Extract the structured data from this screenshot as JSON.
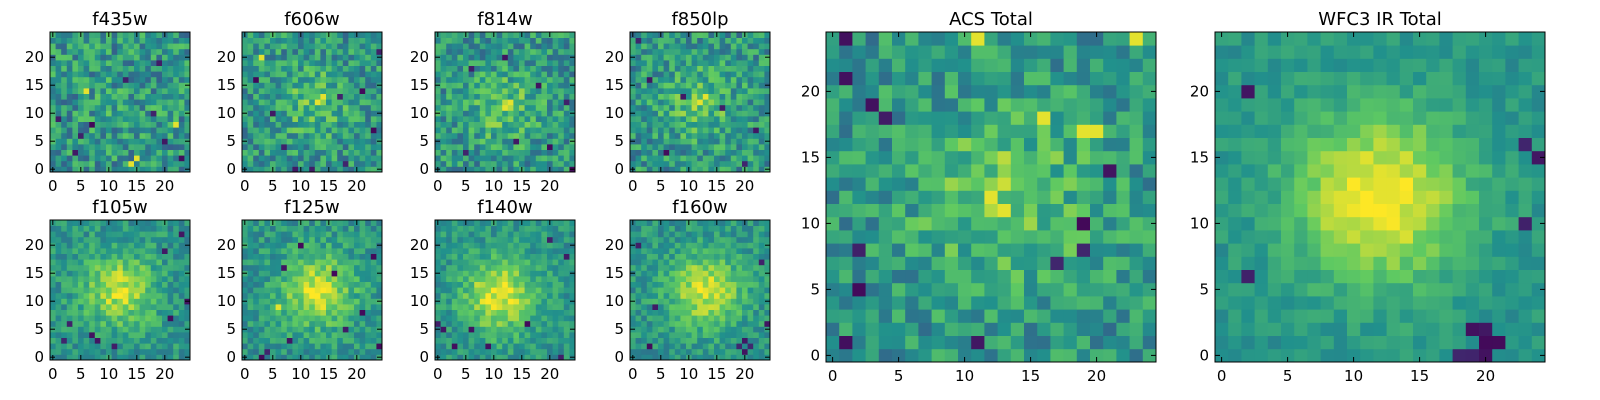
{
  "figure": {
    "background": "#ffffff"
  },
  "colormap": {
    "name": "viridis",
    "stops": [
      "#440154",
      "#3b528b",
      "#21918c",
      "#5ec962",
      "#fde725"
    ]
  },
  "chart_data": [
    {
      "type": "heatmap",
      "id": "f435w",
      "title": "f435w",
      "grid": [
        25,
        25
      ],
      "xlim": [
        -0.5,
        24.5
      ],
      "ylim": [
        -0.5,
        24.5
      ],
      "xticks": [
        0,
        5,
        10,
        15,
        20
      ],
      "yticks": [
        0,
        5,
        10,
        15,
        20
      ],
      "peak": [
        12,
        12
      ],
      "peak_strength": 0.05,
      "noise_level": 0.22,
      "seed": 11,
      "low_pixels": [
        [
          1,
          9
        ],
        [
          5,
          6
        ],
        [
          7,
          8
        ],
        [
          18,
          10
        ],
        [
          20,
          5
        ],
        [
          23,
          2
        ],
        [
          4,
          3
        ],
        [
          19,
          19
        ],
        [
          13,
          16
        ]
      ],
      "high_pixels": [
        [
          14,
          1
        ],
        [
          15,
          2
        ],
        [
          22,
          8
        ],
        [
          6,
          14
        ]
      ]
    },
    {
      "type": "heatmap",
      "id": "f606w",
      "title": "f606w",
      "grid": [
        25,
        25
      ],
      "xlim": [
        -0.5,
        24.5
      ],
      "ylim": [
        -0.5,
        24.5
      ],
      "xticks": [
        0,
        5,
        10,
        15,
        20
      ],
      "yticks": [
        0,
        5,
        10,
        15,
        20
      ],
      "peak": [
        12,
        12
      ],
      "peak_strength": 0.2,
      "noise_level": 0.2,
      "seed": 23,
      "low_pixels": [
        [
          2,
          16
        ],
        [
          5,
          10
        ],
        [
          7,
          4
        ],
        [
          9,
          0
        ],
        [
          12,
          0
        ],
        [
          17,
          13
        ],
        [
          21,
          14
        ],
        [
          18,
          1
        ],
        [
          24,
          21
        ],
        [
          23,
          7
        ]
      ],
      "high_pixels": [
        [
          13,
          12
        ],
        [
          14,
          13
        ],
        [
          3,
          20
        ]
      ]
    },
    {
      "type": "heatmap",
      "id": "f814w",
      "title": "f814w",
      "grid": [
        25,
        25
      ],
      "xlim": [
        -0.5,
        24.5
      ],
      "ylim": [
        -0.5,
        24.5
      ],
      "xticks": [
        0,
        5,
        10,
        15,
        20
      ],
      "yticks": [
        0,
        5,
        10,
        15,
        20
      ],
      "peak": [
        12,
        11
      ],
      "peak_strength": 0.22,
      "noise_level": 0.2,
      "seed": 37,
      "low_pixels": [
        [
          12,
          20
        ],
        [
          14,
          5
        ],
        [
          5,
          3
        ],
        [
          23,
          12
        ],
        [
          20,
          4
        ],
        [
          18,
          15
        ],
        [
          6,
          18
        ],
        [
          24,
          0
        ]
      ],
      "high_pixels": [
        [
          12,
          11
        ],
        [
          13,
          12
        ]
      ]
    },
    {
      "type": "heatmap",
      "id": "f850lp",
      "title": "f850lp",
      "grid": [
        25,
        25
      ],
      "xlim": [
        -0.5,
        24.5
      ],
      "ylim": [
        -0.5,
        24.5
      ],
      "xticks": [
        0,
        5,
        10,
        15,
        20
      ],
      "yticks": [
        0,
        5,
        10,
        15,
        20
      ],
      "peak": [
        12,
        12
      ],
      "peak_strength": 0.22,
      "noise_level": 0.2,
      "seed": 41,
      "low_pixels": [
        [
          3,
          16
        ],
        [
          6,
          3
        ],
        [
          9,
          13
        ],
        [
          16,
          11
        ],
        [
          22,
          7
        ],
        [
          20,
          1
        ],
        [
          1,
          23
        ]
      ],
      "high_pixels": [
        [
          12,
          12
        ],
        [
          13,
          13
        ]
      ]
    },
    {
      "type": "heatmap",
      "id": "f105w",
      "title": "f105w",
      "grid": [
        25,
        25
      ],
      "xlim": [
        -0.5,
        24.5
      ],
      "ylim": [
        -0.5,
        24.5
      ],
      "xticks": [
        0,
        5,
        10,
        15,
        20
      ],
      "yticks": [
        0,
        5,
        10,
        15,
        20
      ],
      "peak": [
        12,
        12
      ],
      "peak_strength": 0.42,
      "noise_level": 0.14,
      "seed": 53,
      "low_pixels": [
        [
          3,
          6
        ],
        [
          2,
          3
        ],
        [
          7,
          4
        ],
        [
          8,
          3
        ],
        [
          11,
          2
        ],
        [
          20,
          19
        ],
        [
          23,
          22
        ],
        [
          21,
          7
        ],
        [
          24,
          10
        ]
      ],
      "high_pixels": [
        [
          12,
          12
        ],
        [
          13,
          11
        ]
      ]
    },
    {
      "type": "heatmap",
      "id": "f125w",
      "title": "f125w",
      "grid": [
        25,
        25
      ],
      "xlim": [
        -0.5,
        24.5
      ],
      "ylim": [
        -0.5,
        24.5
      ],
      "xticks": [
        0,
        5,
        10,
        15,
        20
      ],
      "yticks": [
        0,
        5,
        10,
        15,
        20
      ],
      "peak": [
        13,
        12
      ],
      "peak_strength": 0.45,
      "noise_level": 0.14,
      "seed": 67,
      "low_pixels": [
        [
          3,
          0
        ],
        [
          4,
          1
        ],
        [
          8,
          3
        ],
        [
          18,
          5
        ],
        [
          21,
          8
        ],
        [
          24,
          2
        ],
        [
          23,
          18
        ],
        [
          7,
          16
        ],
        [
          16,
          15
        ],
        [
          10,
          20
        ]
      ],
      "high_pixels": [
        [
          13,
          12
        ],
        [
          14,
          13
        ],
        [
          6,
          9
        ]
      ]
    },
    {
      "type": "heatmap",
      "id": "f140w",
      "title": "f140w",
      "grid": [
        25,
        25
      ],
      "xlim": [
        -0.5,
        24.5
      ],
      "ylim": [
        -0.5,
        24.5
      ],
      "xticks": [
        0,
        5,
        10,
        15,
        20
      ],
      "yticks": [
        0,
        5,
        10,
        15,
        20
      ],
      "peak": [
        11,
        11
      ],
      "peak_strength": 0.48,
      "noise_level": 0.13,
      "seed": 79,
      "low_pixels": [
        [
          1,
          5
        ],
        [
          0,
          6
        ],
        [
          3,
          2
        ],
        [
          6,
          5
        ],
        [
          9,
          2
        ],
        [
          20,
          21
        ],
        [
          23,
          18
        ],
        [
          22,
          0
        ],
        [
          16,
          6
        ]
      ],
      "high_pixels": [
        [
          11,
          11
        ],
        [
          12,
          12
        ],
        [
          10,
          10
        ]
      ]
    },
    {
      "type": "heatmap",
      "id": "f160w",
      "title": "f160w",
      "grid": [
        25,
        25
      ],
      "xlim": [
        -0.5,
        24.5
      ],
      "ylim": [
        -0.5,
        24.5
      ],
      "xticks": [
        0,
        5,
        10,
        15,
        20
      ],
      "yticks": [
        0,
        5,
        10,
        15,
        20
      ],
      "peak": [
        13,
        12
      ],
      "peak_strength": 0.45,
      "noise_level": 0.13,
      "seed": 97,
      "low_pixels": [
        [
          19,
          2
        ],
        [
          20,
          1
        ],
        [
          21,
          2
        ],
        [
          20,
          3
        ],
        [
          3,
          2
        ],
        [
          23,
          17
        ],
        [
          24,
          6
        ],
        [
          1,
          20
        ],
        [
          4,
          9
        ]
      ],
      "high_pixels": [
        [
          13,
          12
        ],
        [
          14,
          13
        ]
      ]
    },
    {
      "type": "heatmap",
      "id": "acs_total",
      "title": "ACS Total",
      "grid": [
        25,
        25
      ],
      "xlim": [
        -0.5,
        24.5
      ],
      "ylim": [
        -0.5,
        24.5
      ],
      "xticks": [
        0,
        5,
        10,
        15,
        20
      ],
      "yticks": [
        0,
        5,
        10,
        15,
        20
      ],
      "peak": [
        13,
        12
      ],
      "peak_strength": 0.28,
      "noise_level": 0.18,
      "seed": 109,
      "low_pixels": [
        [
          1,
          21
        ],
        [
          2,
          5
        ],
        [
          2,
          8
        ],
        [
          1,
          24
        ],
        [
          3,
          19
        ],
        [
          11,
          1
        ],
        [
          19,
          8
        ],
        [
          19,
          10
        ],
        [
          4,
          18
        ],
        [
          21,
          14
        ],
        [
          17,
          7
        ],
        [
          1,
          1
        ]
      ],
      "high_pixels": [
        [
          23,
          24
        ],
        [
          11,
          24
        ],
        [
          16,
          18
        ],
        [
          19,
          17
        ],
        [
          20,
          17
        ],
        [
          12,
          12
        ],
        [
          13,
          11
        ]
      ]
    },
    {
      "type": "heatmap",
      "id": "wfc3_ir_total",
      "title": "WFC3 IR Total",
      "grid": [
        25,
        25
      ],
      "xlim": [
        -0.5,
        24.5
      ],
      "ylim": [
        -0.5,
        24.5
      ],
      "xticks": [
        0,
        5,
        10,
        15,
        20
      ],
      "yticks": [
        0,
        5,
        10,
        15,
        20
      ],
      "peak": [
        12,
        12
      ],
      "peak_strength": 0.55,
      "noise_level": 0.08,
      "seed": 131,
      "low_pixels": [
        [
          19,
          0
        ],
        [
          20,
          0
        ],
        [
          20,
          1
        ],
        [
          19,
          2
        ],
        [
          20,
          2
        ],
        [
          21,
          1
        ],
        [
          18,
          0
        ],
        [
          2,
          6
        ],
        [
          23,
          10
        ],
        [
          2,
          20
        ],
        [
          24,
          15
        ],
        [
          23,
          16
        ]
      ],
      "high_pixels": [
        [
          12,
          12
        ],
        [
          13,
          13
        ],
        [
          12,
          13
        ],
        [
          13,
          12
        ]
      ]
    }
  ]
}
